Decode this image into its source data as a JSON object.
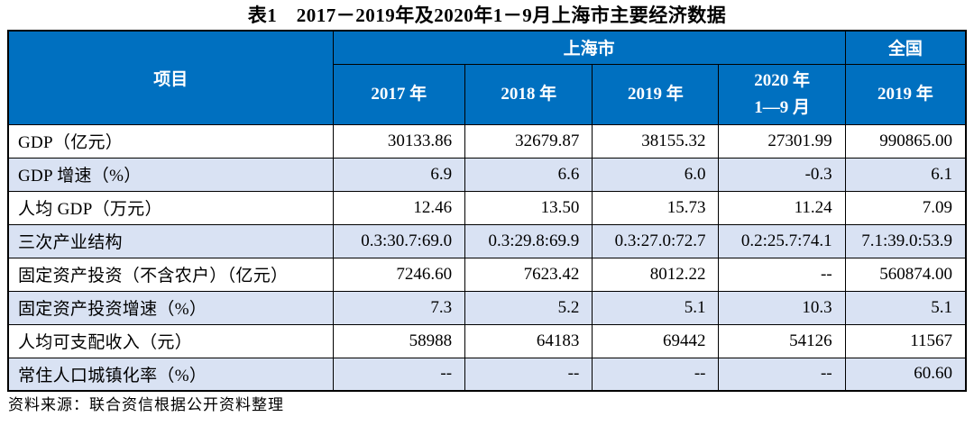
{
  "title": "表1　2017－2019年及2020年1－9月上海市主要经济数据",
  "table": {
    "corner_header": "项目",
    "group_headers": [
      {
        "label": "上海市",
        "colspan": 4
      },
      {
        "label": "全国",
        "colspan": 1
      }
    ],
    "col_headers": [
      "2017 年",
      "2018 年",
      "2019 年",
      "2020 年\n1—9 月",
      "2019 年"
    ],
    "rows": [
      {
        "label": "GDP（亿元）",
        "values": [
          "30133.86",
          "32679.87",
          "38155.32",
          "27301.99",
          "990865.00"
        ]
      },
      {
        "label": "GDP 增速（%）",
        "values": [
          "6.9",
          "6.6",
          "6.0",
          "-0.3",
          "6.1"
        ]
      },
      {
        "label": "人均 GDP（万元）",
        "values": [
          "12.46",
          "13.50",
          "15.73",
          "11.24",
          "7.09"
        ]
      },
      {
        "label": "三次产业结构",
        "values": [
          "0.3:30.7:69.0",
          "0.3:29.8:69.9",
          "0.3:27.0:72.7",
          "0.2:25.7:74.1",
          "7.1:39.0:53.9"
        ]
      },
      {
        "label": "固定资产投资（不含农户）（亿元）",
        "values": [
          "7246.60",
          "7623.42",
          "8012.22",
          "--",
          "560874.00"
        ]
      },
      {
        "label": "固定资产投资增速（%）",
        "values": [
          "7.3",
          "5.2",
          "5.1",
          "10.3",
          "5.1"
        ]
      },
      {
        "label": "人均可支配收入（元）",
        "values": [
          "58988",
          "64183",
          "69442",
          "54126",
          "11567"
        ]
      },
      {
        "label": "常住人口城镇化率（%）",
        "values": [
          "--",
          "--",
          "--",
          "--",
          "60.60"
        ]
      }
    ]
  },
  "footer": "资料来源：联合资信根据公开资料整理",
  "colors": {
    "header_bg": "#0070C0",
    "header_text": "#FFFFFF",
    "alt_row_bg": "#D9E2F3",
    "row_bg": "#FFFFFF",
    "border": "#000000",
    "body_text": "#000000"
  }
}
